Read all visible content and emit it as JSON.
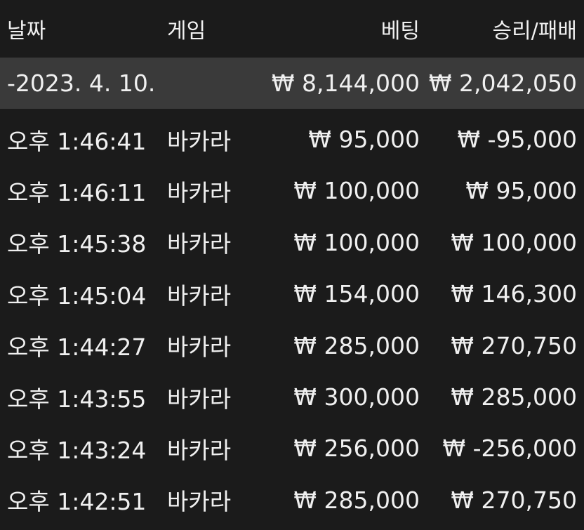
{
  "header": {
    "date": "날짜",
    "game": "게임",
    "bet": "베팅",
    "result": "승리/패배"
  },
  "group": {
    "date": "-2023. 4. 10.",
    "bet": "₩ 8,144,000",
    "result": "₩ 2,042,050"
  },
  "rows": [
    [
      "오후 1:46:41",
      "바카라",
      "₩ 95,000",
      "₩ -95,000"
    ],
    [
      "오후 1:46:11",
      "바카라",
      "₩ 100,000",
      "₩ 95,000"
    ],
    [
      "오후 1:45:38",
      "바카라",
      "₩ 100,000",
      "₩ 100,000"
    ],
    [
      "오후 1:45:04",
      "바카라",
      "₩ 154,000",
      "₩ 146,300"
    ],
    [
      "오후 1:44:27",
      "바카라",
      "₩ 285,000",
      "₩ 270,750"
    ],
    [
      "오후 1:43:55",
      "바카라",
      "₩ 300,000",
      "₩ 285,000"
    ],
    [
      "오후 1:43:24",
      "바카라",
      "₩ 256,000",
      "₩ -256,000"
    ],
    [
      "오후 1:42:51",
      "바카라",
      "₩ 285,000",
      "₩ 270,750"
    ]
  ]
}
